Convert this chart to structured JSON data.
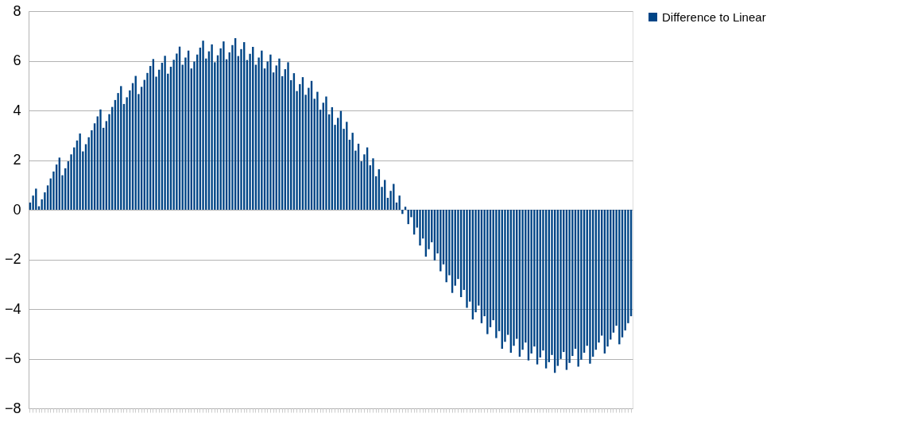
{
  "chart_data": {
    "type": "bar",
    "categories": [
      null,
      null,
      null,
      null,
      null,
      null,
      null,
      null,
      null,
      null,
      null,
      null,
      null,
      null,
      null,
      null,
      null,
      null,
      null,
      null,
      null,
      null,
      null,
      null,
      null,
      null,
      null,
      null,
      null,
      null,
      null,
      null,
      null,
      null,
      null,
      null,
      null,
      null,
      null,
      null,
      null,
      null,
      null,
      null,
      null,
      null,
      null,
      null,
      null,
      null,
      null,
      null,
      null,
      null,
      null,
      null,
      null,
      null,
      null,
      null,
      null,
      null,
      null,
      null,
      null,
      null,
      null,
      null,
      null,
      null,
      null,
      null,
      null,
      null,
      null,
      null,
      null,
      null,
      null,
      null,
      null,
      null,
      null,
      null,
      null,
      null,
      null,
      null,
      null,
      null,
      null,
      null,
      null,
      null,
      null,
      null,
      null,
      null,
      null,
      null,
      null,
      null,
      null,
      null,
      null,
      null,
      null,
      null,
      null,
      null,
      null,
      null,
      null,
      null,
      null,
      null,
      null,
      null,
      null,
      null,
      null,
      null,
      null,
      null,
      null,
      null,
      null,
      null,
      null,
      null,
      null,
      null,
      null,
      null,
      null,
      null,
      null,
      null,
      null,
      null,
      null,
      null,
      null,
      null,
      null,
      null,
      null,
      null,
      null,
      null,
      null,
      null,
      null,
      null,
      null,
      null,
      null,
      null,
      null,
      null,
      null,
      null,
      null,
      null,
      null,
      null,
      null,
      null,
      null,
      null,
      null,
      null,
      null,
      null,
      null,
      null,
      null,
      null,
      null,
      null,
      null,
      null,
      null,
      null,
      null,
      null,
      null,
      null,
      null,
      null,
      null,
      null,
      null,
      null,
      null,
      null,
      null,
      null,
      null,
      null,
      null,
      null,
      null,
      null,
      null,
      null
    ],
    "series": [
      {
        "name": "Difference to Linear",
        "color": "#004586",
        "values": [
          0.29,
          0.57,
          0.85,
          0.14,
          0.42,
          0.7,
          0.98,
          1.26,
          1.54,
          1.82,
          2.1,
          1.39,
          1.67,
          1.95,
          2.23,
          2.51,
          2.79,
          3.07,
          2.35,
          2.64,
          2.92,
          3.2,
          3.48,
          3.76,
          4.04,
          3.3,
          3.57,
          3.85,
          4.14,
          4.42,
          4.7,
          4.98,
          4.26,
          4.53,
          4.81,
          5.1,
          5.39,
          4.66,
          4.95,
          5.23,
          5.51,
          5.79,
          6.07,
          5.36,
          5.64,
          5.92,
          6.2,
          5.48,
          5.76,
          6.04,
          6.29,
          6.57,
          5.84,
          6.13,
          6.41,
          5.69,
          5.97,
          6.25,
          6.53,
          6.81,
          6.09,
          6.38,
          6.66,
          5.94,
          6.22,
          6.5,
          6.78,
          6.06,
          6.34,
          6.63,
          6.91,
          6.19,
          6.47,
          6.75,
          6.03,
          6.28,
          6.56,
          5.84,
          6.13,
          6.41,
          5.69,
          5.97,
          6.25,
          5.53,
          5.81,
          6.09,
          5.38,
          5.66,
          5.94,
          5.22,
          5.5,
          4.78,
          5.06,
          5.34,
          4.63,
          4.91,
          5.19,
          4.47,
          4.75,
          4.03,
          4.31,
          4.56,
          3.84,
          4.13,
          3.42,
          3.7,
          3.98,
          3.26,
          3.54,
          2.82,
          3.1,
          2.38,
          2.66,
          1.95,
          2.23,
          2.51,
          1.79,
          2.07,
          1.35,
          1.63,
          0.92,
          1.2,
          0.48,
          0.76,
          1.04,
          0.29,
          0.57,
          -0.17,
          0.12,
          -0.58,
          -0.3,
          -1.0,
          -0.72,
          -1.44,
          -1.16,
          -1.89,
          -1.59,
          -1.31,
          -2.04,
          -1.76,
          -2.48,
          -2.2,
          -2.92,
          -2.64,
          -3.35,
          -3.06,
          -2.79,
          -3.52,
          -3.23,
          -3.95,
          -3.7,
          -4.42,
          -4.13,
          -3.86,
          -4.57,
          -4.29,
          -5.01,
          -4.73,
          -4.45,
          -5.17,
          -4.89,
          -5.6,
          -5.32,
          -5.04,
          -5.76,
          -5.48,
          -5.2,
          -5.92,
          -5.64,
          -5.35,
          -6.07,
          -5.79,
          -5.51,
          -6.23,
          -5.95,
          -5.67,
          -6.39,
          -6.14,
          -5.85,
          -6.57,
          -6.29,
          -6.01,
          -5.73,
          -6.45,
          -6.17,
          -5.89,
          -5.6,
          -6.32,
          -6.04,
          -5.76,
          -5.48,
          -6.2,
          -5.92,
          -5.64,
          -5.35,
          -5.07,
          -5.79,
          -5.51,
          -5.23,
          -4.95,
          -4.67,
          -5.42,
          -5.14,
          -4.86,
          -4.57,
          -4.29
        ]
      }
    ],
    "ylim": [
      -8,
      8
    ],
    "yticks": [
      -8,
      -6,
      -4,
      -2,
      0,
      2,
      4,
      6,
      8
    ],
    "grid": "y",
    "legend": "right",
    "tick_labels": "y"
  }
}
